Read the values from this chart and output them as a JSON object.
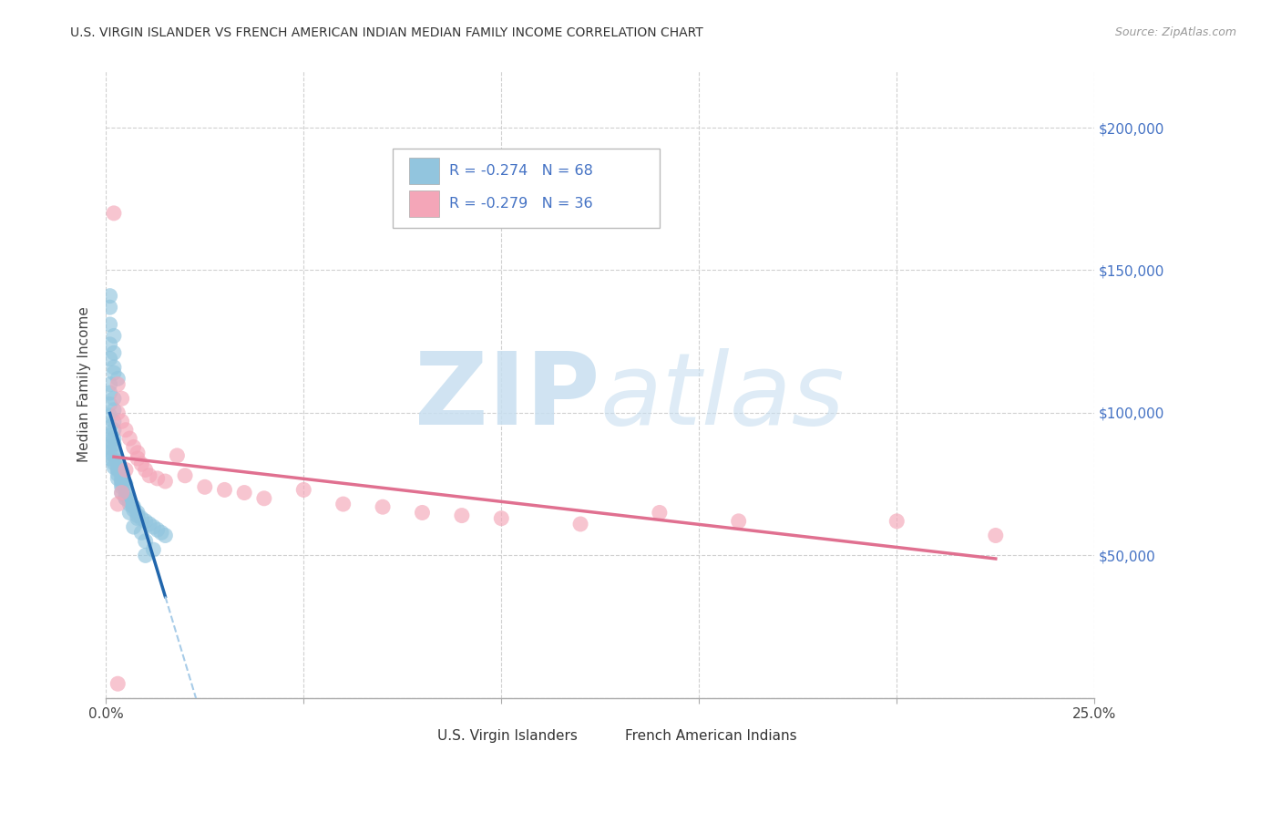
{
  "title": "U.S. VIRGIN ISLANDER VS FRENCH AMERICAN INDIAN MEDIAN FAMILY INCOME CORRELATION CHART",
  "source": "Source: ZipAtlas.com",
  "ylabel": "Median Family Income",
  "xlim": [
    0,
    0.25
  ],
  "ylim": [
    0,
    220000
  ],
  "xticks": [
    0.0,
    0.05,
    0.1,
    0.15,
    0.2,
    0.25
  ],
  "xticklabels_ends": [
    "0.0%",
    "25.0%"
  ],
  "yticks": [
    0,
    50000,
    100000,
    150000,
    200000
  ],
  "yticklabels_right": [
    "",
    "$50,000",
    "$100,000",
    "$150,000",
    "$200,000"
  ],
  "legend_r1": "R = -0.274",
  "legend_n1": "N = 68",
  "legend_r2": "R = -0.279",
  "legend_n2": "N = 36",
  "series1_label": "U.S. Virgin Islanders",
  "series2_label": "French American Indians",
  "series1_color": "#92c5de",
  "series2_color": "#f4a6b8",
  "series1_line_color": "#2166ac",
  "series2_line_color": "#e07090",
  "series1_line_dashed_color": "#a8cce8",
  "grid_color": "#d0d0d0",
  "right_tick_color": "#4472c4",
  "watermark_zip_color": "#c8dff0",
  "watermark_atlas_color": "#c8dff0",
  "blue_x": [
    0.001,
    0.001,
    0.001,
    0.002,
    0.001,
    0.002,
    0.001,
    0.002,
    0.002,
    0.003,
    0.001,
    0.001,
    0.002,
    0.001,
    0.002,
    0.001,
    0.002,
    0.001,
    0.002,
    0.001,
    0.002,
    0.001,
    0.002,
    0.001,
    0.002,
    0.001,
    0.002,
    0.001,
    0.003,
    0.002,
    0.003,
    0.002,
    0.003,
    0.003,
    0.004,
    0.003,
    0.004,
    0.003,
    0.004,
    0.004,
    0.005,
    0.004,
    0.005,
    0.004,
    0.005,
    0.005,
    0.006,
    0.006,
    0.007,
    0.007,
    0.008,
    0.008,
    0.009,
    0.01,
    0.011,
    0.012,
    0.013,
    0.014,
    0.015,
    0.01,
    0.012,
    0.01,
    0.009,
    0.008,
    0.007,
    0.006,
    0.005,
    0.004
  ],
  "blue_y": [
    141000,
    137000,
    131000,
    127000,
    124000,
    121000,
    119000,
    116000,
    114000,
    112000,
    110000,
    107000,
    105000,
    103000,
    101000,
    99000,
    97000,
    95000,
    94000,
    92000,
    91000,
    90000,
    89000,
    88000,
    87000,
    86000,
    85000,
    84000,
    83000,
    82500,
    82000,
    81000,
    80500,
    80000,
    79000,
    78500,
    78000,
    77000,
    76500,
    76000,
    75000,
    74000,
    73000,
    72000,
    71000,
    70000,
    69000,
    68000,
    67000,
    66000,
    65000,
    64000,
    63000,
    62000,
    61000,
    60000,
    59000,
    58000,
    57000,
    55000,
    52000,
    50000,
    58000,
    63000,
    60000,
    65000,
    70000,
    75000
  ],
  "pink_x": [
    0.002,
    0.003,
    0.003,
    0.004,
    0.004,
    0.005,
    0.006,
    0.007,
    0.008,
    0.008,
    0.009,
    0.01,
    0.011,
    0.013,
    0.015,
    0.018,
    0.02,
    0.025,
    0.03,
    0.035,
    0.04,
    0.05,
    0.06,
    0.07,
    0.08,
    0.09,
    0.1,
    0.12,
    0.14,
    0.16,
    0.2,
    0.225,
    0.003,
    0.004,
    0.003,
    0.005
  ],
  "pink_y": [
    170000,
    110000,
    100000,
    105000,
    97000,
    94000,
    91000,
    88000,
    86000,
    84000,
    82000,
    80000,
    78000,
    77000,
    76000,
    85000,
    78000,
    74000,
    73000,
    72000,
    70000,
    73000,
    68000,
    67000,
    65000,
    64000,
    63000,
    61000,
    65000,
    62000,
    62000,
    57000,
    5000,
    72000,
    68000,
    80000
  ]
}
